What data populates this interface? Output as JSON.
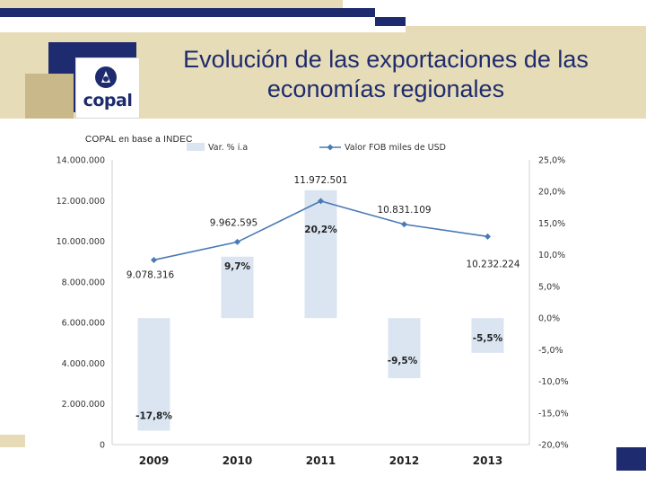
{
  "slide": {
    "title": "Evolución de las exportaciones de las economías regionales",
    "source": "COPAL en base a INDEC",
    "logo_text": "copal"
  },
  "colors": {
    "navy": "#1e2b6e",
    "beige": "#e6dcb8",
    "bar": "#dbe5f1",
    "line": "#4a7ab5"
  },
  "chart_data": {
    "type": "bar+line",
    "categories": [
      "2009",
      "2010",
      "2011",
      "2012",
      "2013"
    ],
    "series": [
      {
        "name": "Var. % i.a",
        "kind": "bar",
        "axis": "right",
        "values": [
          -17.8,
          9.7,
          20.2,
          -9.5,
          -5.5
        ],
        "labels": [
          "-17,8%",
          "9,7%",
          "20,2%",
          "-9,5%",
          "-5,5%"
        ]
      },
      {
        "name": "Valor FOB miles de USD",
        "kind": "line",
        "axis": "left",
        "values": [
          9078316,
          9962595,
          11972501,
          10831109,
          10232224
        ],
        "labels": [
          "9.078.316",
          "9.962.595",
          "11.972.501",
          "10.831.109",
          "10.232.224"
        ]
      }
    ],
    "left_axis": {
      "min": 0,
      "max": 14000000,
      "ticks": [
        0,
        2000000,
        4000000,
        6000000,
        8000000,
        10000000,
        12000000,
        14000000
      ],
      "tick_labels": [
        "0",
        "2.000.000",
        "4.000.000",
        "6.000.000",
        "8.000.000",
        "10.000.000",
        "12.000.000",
        "14.000.000"
      ]
    },
    "right_axis": {
      "min": -20,
      "max": 25,
      "ticks": [
        -20,
        -15,
        -10,
        -5,
        0,
        5,
        10,
        15,
        20,
        25
      ],
      "tick_labels": [
        "-20,0%",
        "-15,0%",
        "-10,0%",
        "-5,0%",
        "0,0%",
        "5,0%",
        "10,0%",
        "15,0%",
        "20,0%",
        "25,0%"
      ]
    },
    "grid": false,
    "legend_position": "top"
  }
}
